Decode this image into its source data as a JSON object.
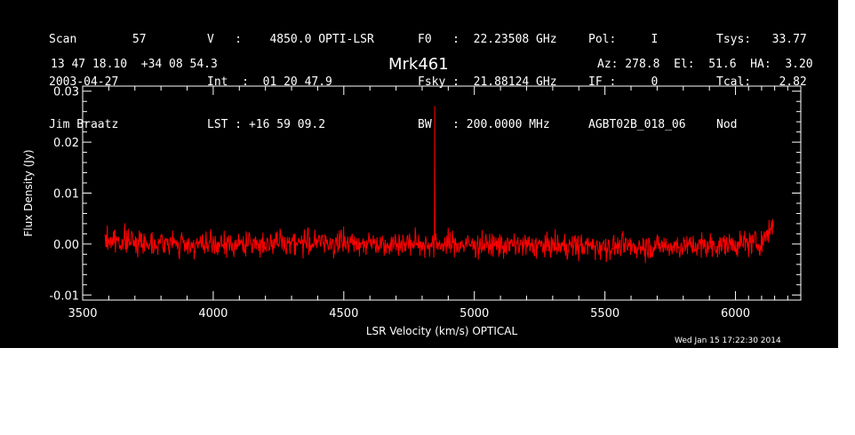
{
  "header": {
    "col1": [
      "Scan        57",
      "2003-04-27",
      "Jim Braatz"
    ],
    "col2": [
      "V   :    4850.0 OPTI-LSR",
      "Int  :  01 20 47.9",
      "LST : +16 59 09.2"
    ],
    "col3": [
      "F0   :  22.23508 GHz",
      "Fsky :  21.88124 GHz",
      "BW   : 200.0000 MHz"
    ],
    "col4": [
      "Pol:     I",
      "IF :     0",
      "AGBT02B_018_06"
    ],
    "col5": [
      "Tsys:   33.77",
      "Tcal:    2.82",
      "Nod"
    ],
    "coords": "13 47 18.10  +34 08 54.3",
    "az_el_ha": "Az: 278.8  El:  51.6  HA:  3.20"
  },
  "footer": {
    "timestamp": "Wed Jan 15 17:22:30 2014"
  },
  "chart_data": {
    "type": "line",
    "title": "Mrk461",
    "xlabel": "LSR Velocity (km/s) OPTICAL",
    "ylabel": "Flux Density (Jy)",
    "xlim": [
      3500,
      6250
    ],
    "ylim": [
      -0.011,
      0.031
    ],
    "xticks": [
      3500,
      4000,
      4500,
      5000,
      5500,
      6000
    ],
    "xtick_labels": [
      "3500",
      "4000",
      "4500",
      "5000",
      "5500",
      "6000"
    ],
    "yticks": [
      0.03,
      0.02,
      0.01,
      0.0,
      -0.01
    ],
    "ytick_labels": [
      "0.03",
      "0.02",
      "0.01",
      "0.00",
      "-0.01"
    ],
    "grid": false,
    "series": [
      {
        "color": "#ff0000",
        "x_range": [
          3585,
          6145
        ],
        "noise_rms": 0.0012,
        "baseline": [
          {
            "x": 3585,
            "y": 0.0008
          },
          {
            "x": 3800,
            "y": 0.0002
          },
          {
            "x": 4000,
            "y": -0.0003
          },
          {
            "x": 4300,
            "y": 0.0004
          },
          {
            "x": 4600,
            "y": 0.0002
          },
          {
            "x": 4850,
            "y": 0.0
          },
          {
            "x": 5200,
            "y": -0.0003
          },
          {
            "x": 5600,
            "y": -0.0005
          },
          {
            "x": 5900,
            "y": -0.0003
          },
          {
            "x": 6100,
            "y": 0.0003
          },
          {
            "x": 6145,
            "y": 0.004
          }
        ],
        "peak": {
          "x": 4848,
          "y": 0.027
        }
      }
    ]
  }
}
